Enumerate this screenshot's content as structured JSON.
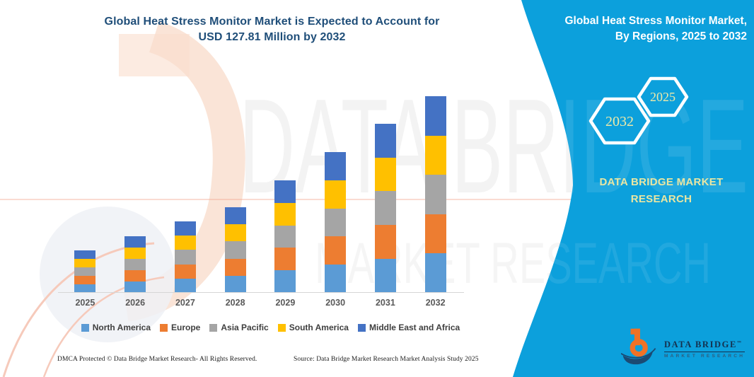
{
  "title": {
    "line1": "Global Heat Stress Monitor Market is Expected to Account for",
    "line2": "USD 127.81 Million by 2032"
  },
  "banner": {
    "line1": "Global Heat Stress Monitor Market,",
    "line2": "By Regions, 2025 to 2032",
    "hexagon_back": "2032",
    "hexagon_front": "2025",
    "brand_line1": "DATA BRIDGE MARKET",
    "brand_line2": "RESEARCH",
    "accent_color": "#0CA0DC"
  },
  "chart_data": {
    "type": "bar",
    "stacked": true,
    "title": "Global Heat Stress Monitor Market, By Regions, 2025 to 2032",
    "unit": "USD Million",
    "xlabel": "",
    "ylabel": "",
    "y_axis_visible": false,
    "gridlines": false,
    "legend_position": "bottom",
    "categories": [
      "2025",
      "2026",
      "2027",
      "2028",
      "2029",
      "2030",
      "2031",
      "2032"
    ],
    "series": [
      {
        "name": "North America",
        "color": "#5B9BD5",
        "values": [
          5.6,
          7.4,
          9.3,
          11.2,
          14.7,
          18.3,
          22.0,
          25.6
        ]
      },
      {
        "name": "Europe",
        "color": "#ED7D31",
        "values": [
          5.6,
          7.4,
          9.3,
          11.1,
          14.6,
          18.3,
          22.0,
          25.6
        ]
      },
      {
        "name": "Asia Pacific",
        "color": "#A5A5A5",
        "values": [
          5.5,
          7.4,
          9.3,
          11.1,
          14.6,
          18.3,
          22.0,
          25.6
        ]
      },
      {
        "name": "South America",
        "color": "#FFC000",
        "values": [
          5.5,
          7.3,
          9.3,
          11.1,
          14.6,
          18.3,
          22.0,
          25.5
        ]
      },
      {
        "name": "Middle East and Africa",
        "color": "#4472C4",
        "values": [
          5.4,
          7.3,
          9.2,
          11.1,
          14.6,
          18.3,
          21.9,
          25.51
        ]
      }
    ],
    "totals_estimated": [
      27.6,
      36.8,
      46.4,
      55.6,
      73.1,
      91.5,
      109.9,
      127.81
    ],
    "highlight_value": "USD 127.81 Million by 2032"
  },
  "watermark": {
    "line1": "DATA BRIDGE",
    "line2": "MARKET RESEARCH"
  },
  "logo": {
    "name": "DATA BRIDGE",
    "trademark": "™",
    "subname": "MARKET RESEARCH"
  },
  "footer": {
    "left": "DMCA Protected © Data Bridge Market Research- All Rights Reserved.",
    "right": "Source: Data Bridge Market Research Market Analysis Study 2025"
  }
}
